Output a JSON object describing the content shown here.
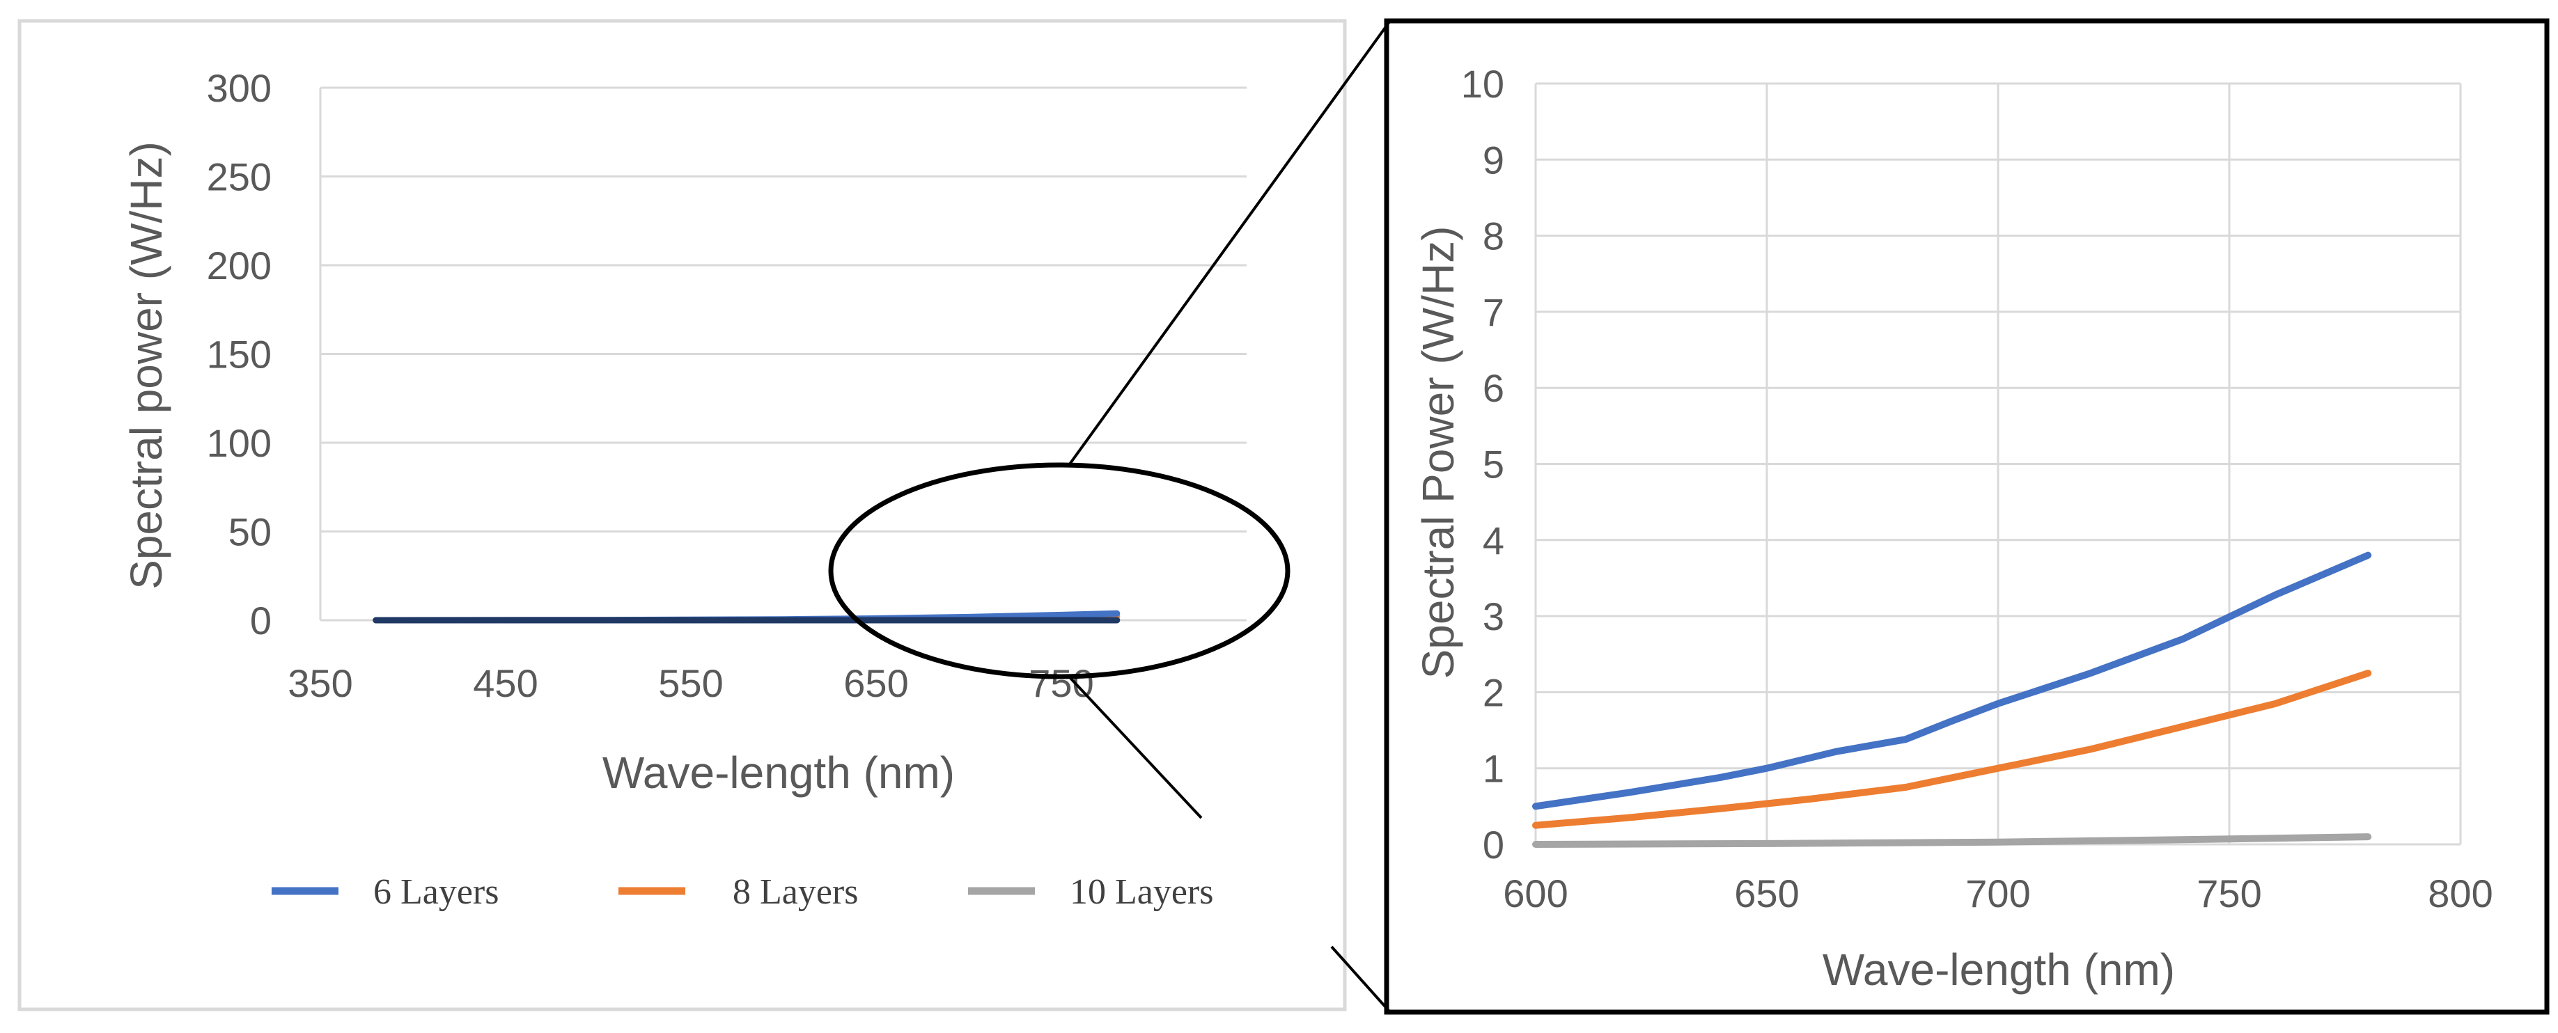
{
  "colors": {
    "series_6": "#4472C4",
    "series_8": "#ED7D31",
    "series_10": "#A5A5A5",
    "grid": "#D9D9D9",
    "overview_line": "#1F3864",
    "text": "#595959",
    "frame_left": "#D9D9D9",
    "frame_right": "#000000"
  },
  "chart_data": [
    {
      "id": "overview",
      "type": "line",
      "title": "",
      "xlabel": "Wave-length (nm)",
      "ylabel": "Spectral power (W/Hz)",
      "xlim": [
        350,
        850
      ],
      "ylim": [
        0,
        300
      ],
      "x_ticks": [
        350,
        450,
        550,
        650,
        750
      ],
      "y_ticks": [
        0,
        50,
        100,
        150,
        200,
        250,
        300
      ],
      "grid": true,
      "legend_position": "bottom",
      "series": [
        {
          "name": "6 Layers",
          "color_key": "series_6",
          "x": [
            380,
            500,
            600,
            650,
            700,
            750,
            780
          ],
          "y": [
            0.0,
            0.1,
            0.5,
            1.0,
            1.8,
            3.0,
            3.8
          ]
        },
        {
          "name": "8 Layers",
          "color_key": "series_8",
          "x": [
            380,
            500,
            600,
            650,
            700,
            750,
            780
          ],
          "y": [
            0.0,
            0.05,
            0.25,
            0.55,
            1.0,
            1.7,
            2.25
          ]
        },
        {
          "name": "10 Layers",
          "color_key": "series_10",
          "x": [
            380,
            500,
            600,
            650,
            700,
            750,
            780
          ],
          "y": [
            0.0,
            0.0,
            0.02,
            0.03,
            0.05,
            0.08,
            0.1
          ]
        }
      ]
    },
    {
      "id": "zoom",
      "type": "line",
      "title": "",
      "xlabel": "Wave-length (nm)",
      "ylabel": "Spectral Power (W/Hz)",
      "xlim": [
        600,
        800
      ],
      "ylim": [
        0,
        10
      ],
      "x_ticks": [
        600,
        650,
        700,
        750,
        800
      ],
      "y_ticks": [
        0,
        1,
        2,
        3,
        4,
        5,
        6,
        7,
        8,
        9,
        10
      ],
      "grid": true,
      "series": [
        {
          "name": "6 Layers",
          "color_key": "series_6",
          "x": [
            600,
            620,
            640,
            650,
            665,
            680,
            690,
            700,
            720,
            740,
            760,
            780
          ],
          "y": [
            0.5,
            0.68,
            0.88,
            1.0,
            1.22,
            1.38,
            1.62,
            1.85,
            2.25,
            2.7,
            3.28,
            3.8
          ]
        },
        {
          "name": "8 Layers",
          "color_key": "series_8",
          "x": [
            600,
            620,
            640,
            660,
            680,
            700,
            720,
            740,
            760,
            780
          ],
          "y": [
            0.25,
            0.35,
            0.47,
            0.6,
            0.75,
            1.0,
            1.25,
            1.55,
            1.85,
            2.25
          ]
        },
        {
          "name": "10 Layers",
          "color_key": "series_10",
          "x": [
            600,
            650,
            700,
            750,
            780
          ],
          "y": [
            0.0,
            0.01,
            0.03,
            0.07,
            0.1
          ]
        }
      ]
    }
  ]
}
